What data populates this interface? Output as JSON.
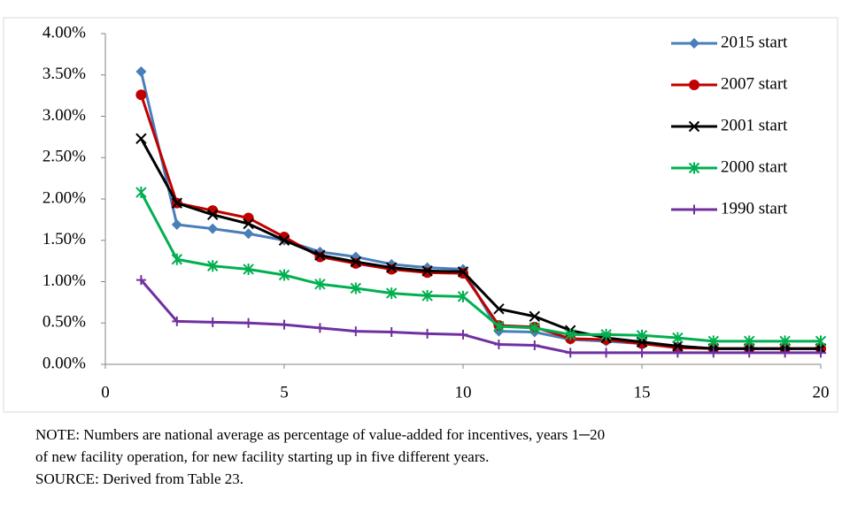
{
  "chart_data": {
    "type": "line",
    "x": [
      1,
      2,
      3,
      4,
      5,
      6,
      7,
      8,
      9,
      10,
      11,
      12,
      13,
      14,
      15,
      16,
      17,
      18,
      19,
      20
    ],
    "xlim": [
      0,
      20
    ],
    "xticks": [
      0,
      5,
      10,
      15,
      20
    ],
    "ylim": [
      0,
      4
    ],
    "yticks": [
      {
        "value": 0,
        "label": "0.00%"
      },
      {
        "value": 0.5,
        "label": "0.50%"
      },
      {
        "value": 1,
        "label": "1.00%"
      },
      {
        "value": 1.5,
        "label": "1.50%"
      },
      {
        "value": 2,
        "label": "2.00%"
      },
      {
        "value": 2.5,
        "label": "2.50%"
      },
      {
        "value": 3,
        "label": "3.00%"
      },
      {
        "value": 3.5,
        "label": "3.50%"
      },
      {
        "value": 4,
        "label": "4.00%"
      }
    ],
    "legend": "top-right",
    "series": [
      {
        "name": "2015 start",
        "color": "#4a7ebb",
        "marker": "diamond",
        "values": [
          3.54,
          1.69,
          1.64,
          1.58,
          1.5,
          1.36,
          1.3,
          1.21,
          1.17,
          1.15,
          0.4,
          0.39,
          0.3,
          0.28,
          0.25,
          0.22,
          0.19,
          0.19,
          0.19,
          0.19
        ]
      },
      {
        "name": "2007 start",
        "color": "#c00000",
        "marker": "circle",
        "values": [
          3.26,
          1.95,
          1.86,
          1.77,
          1.54,
          1.3,
          1.22,
          1.15,
          1.11,
          1.1,
          0.47,
          0.45,
          0.31,
          0.3,
          0.25,
          0.2,
          0.19,
          0.19,
          0.19,
          0.19
        ]
      },
      {
        "name": "2001 start",
        "color": "#000000",
        "marker": "x",
        "values": [
          2.73,
          1.95,
          1.81,
          1.7,
          1.5,
          1.32,
          1.24,
          1.17,
          1.13,
          1.12,
          0.67,
          0.58,
          0.41,
          0.32,
          0.27,
          0.22,
          0.19,
          0.19,
          0.19,
          0.19
        ]
      },
      {
        "name": "2000 start",
        "color": "#00b050",
        "marker": "star",
        "values": [
          2.08,
          1.27,
          1.19,
          1.15,
          1.08,
          0.97,
          0.92,
          0.86,
          0.83,
          0.82,
          0.46,
          0.44,
          0.36,
          0.36,
          0.35,
          0.32,
          0.28,
          0.28,
          0.28,
          0.28
        ]
      },
      {
        "name": "1990 start",
        "color": "#7030a0",
        "marker": "plus",
        "values": [
          1.02,
          0.52,
          0.51,
          0.5,
          0.48,
          0.44,
          0.4,
          0.39,
          0.37,
          0.36,
          0.24,
          0.23,
          0.14,
          0.14,
          0.14,
          0.14,
          0.14,
          0.14,
          0.14,
          0.14
        ]
      }
    ],
    "notes": [
      "NOTE: Numbers are national average as percentage of value-added for incentives, years 1─20",
      "of new facility operation, for new facility starting up in five different years.",
      "SOURCE: Derived from Table 23."
    ]
  }
}
